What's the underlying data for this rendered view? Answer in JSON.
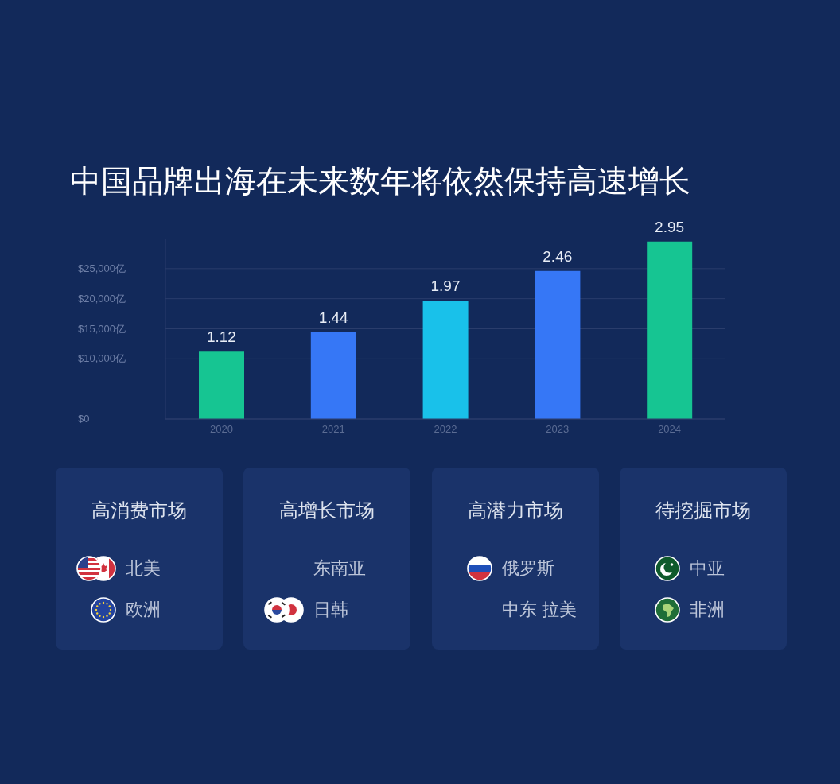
{
  "chart_data": [
    {
      "type": "bar",
      "title": "中国品牌出海在未来数年将依然保持高速增长",
      "categories": [
        "2020",
        "2021",
        "2022",
        "2023",
        "2024"
      ],
      "values": [
        11200,
        14400,
        19700,
        24600,
        29500
      ],
      "colors": [
        "#16c592",
        "#3677f6",
        "#19c1ea",
        "#3677f6",
        "#16c592"
      ],
      "ylim": [
        0,
        30000
      ],
      "yticks": [
        {
          "value": 0,
          "label": "$0"
        },
        {
          "value": 10000,
          "label": "$10,000亿"
        },
        {
          "value": 15000,
          "label": "$15,000亿"
        },
        {
          "value": 20000,
          "label": "$20,000亿"
        },
        {
          "value": 25000,
          "label": "$25,000亿"
        }
      ],
      "grid": "y",
      "annotations": [
        {
          "text": "1.12",
          "x": "2020",
          "y": 11200
        },
        {
          "text": "1.44",
          "x": "2021",
          "y": 14400
        },
        {
          "text": "1.97",
          "x": "2022",
          "y": 19700
        },
        {
          "text": "2.46",
          "x": "2023",
          "y": 24600
        },
        {
          "text": "2.95",
          "x": "2024",
          "y": 29500
        }
      ]
    },
    {
      "type": "other",
      "title": "高消费市场",
      "annotations": [
        "北美",
        "欧洲"
      ]
    },
    {
      "type": "other",
      "title": "高增长市场",
      "annotations": [
        "东南亚",
        "日韩"
      ]
    },
    {
      "type": "other",
      "title": "高潜力市场",
      "annotations": [
        "俄罗斯",
        "中东 拉美"
      ]
    },
    {
      "type": "other",
      "title": "待挖掘市场",
      "annotations": [
        "中亚",
        "非洲"
      ]
    }
  ]
}
